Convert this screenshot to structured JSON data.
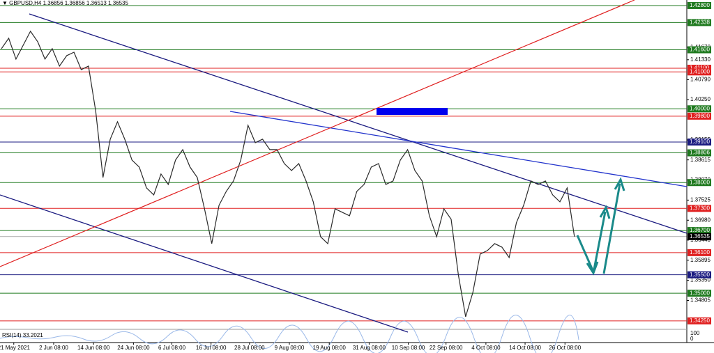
{
  "chart_data": {
    "type": "line",
    "header": "▼ GBPUSD,H4  1.36856 1.36856 1.36513 1.36535",
    "rsi_label": "RSI(14) 33.2021",
    "rsi_yticks": [
      100,
      0
    ],
    "series": [
      {
        "color": "#2a2a2a",
        "values": [
          1.4163,
          1.41913,
          1.41347,
          1.41724,
          1.42102,
          1.41818,
          1.41347,
          1.4163,
          1.41158,
          1.41441,
          1.41535,
          1.41063,
          1.41158,
          1.39931,
          1.38138,
          1.39176,
          1.39648,
          1.39176,
          1.3861,
          1.38421,
          1.37855,
          1.37666,
          1.38232,
          1.37949,
          1.3861,
          1.38893,
          1.38421,
          1.38138,
          1.37288,
          1.36345,
          1.37383,
          1.3776,
          1.38043,
          1.3861,
          1.39553,
          1.39082,
          1.39176,
          1.38893,
          1.38893,
          1.38515,
          1.38327,
          1.38515,
          1.38043,
          1.37477,
          1.36533,
          1.36345,
          1.37288,
          1.37194,
          1.371,
          1.3776,
          1.37949,
          1.38421,
          1.38515,
          1.37949,
          1.38043,
          1.3861,
          1.38893,
          1.38327,
          1.38043,
          1.371,
          1.36533,
          1.37288,
          1.37005,
          1.35495,
          1.34363,
          1.35023,
          1.36062,
          1.36156,
          1.36345,
          1.3625,
          1.35967,
          1.36911,
          1.37383,
          1.38043,
          1.37949,
          1.38043,
          1.37666,
          1.37477,
          1.37855,
          1.36535
        ]
      }
    ],
    "xlim": [
      -0.2,
      94.5
    ],
    "xticks": [
      {
        "value": 1.7,
        "label": "21 May 2021"
      },
      {
        "value": 7.2,
        "label": "2 Jun 08:00"
      },
      {
        "value": 12.7,
        "label": "14 Jun 08:00"
      },
      {
        "value": 18.2,
        "label": "24 Jun 08:00"
      },
      {
        "value": 23.5,
        "label": "6 Jul 08:00"
      },
      {
        "value": 28.9,
        "label": "16 Jul 08:00"
      },
      {
        "value": 34.2,
        "label": "28 Jul 08:00"
      },
      {
        "value": 39.7,
        "label": "9 Aug 08:00"
      },
      {
        "value": 45.2,
        "label": "19 Aug 08:00"
      },
      {
        "value": 50.7,
        "label": "31 Aug 08:00"
      },
      {
        "value": 56.1,
        "label": "10 Sep 08:00"
      },
      {
        "value": 61.3,
        "label": "22 Sep 08:00"
      },
      {
        "value": 66.8,
        "label": "4 Oct 08:00"
      },
      {
        "value": 72.2,
        "label": "14 Oct 08:00"
      },
      {
        "value": 77.7,
        "label": "26 Oct 08:00"
      }
    ],
    "ylim": [
      1.3404,
      1.4295
    ],
    "yticks": [
      {
        "value": 1.4167,
        "label": "1.41670"
      },
      {
        "value": 1.4133,
        "label": "1.41330"
      },
      {
        "value": 1.4079,
        "label": "1.40790"
      },
      {
        "value": 1.4025,
        "label": "1.40250"
      },
      {
        "value": 1.39155,
        "label": "1.39155"
      },
      {
        "value": 1.38615,
        "label": "1.38615"
      },
      {
        "value": 1.3807,
        "label": "1.38070"
      },
      {
        "value": 1.37525,
        "label": "1.37525"
      },
      {
        "value": 1.3698,
        "label": "1.36980"
      },
      {
        "value": 1.3644,
        "label": "1.36440"
      },
      {
        "value": 1.35895,
        "label": "1.35895"
      },
      {
        "value": 1.3535,
        "label": "1.35350"
      },
      {
        "value": 1.34805,
        "label": "1.34805"
      }
    ],
    "levels": [
      {
        "value": 1.428,
        "label": "1.42800",
        "color": "#1f7a1f"
      },
      {
        "value": 1.42338,
        "label": "1.42338",
        "color": "#1f7a1f"
      },
      {
        "value": 1.416,
        "label": "1.41600",
        "color": "#1f7a1f"
      },
      {
        "value": 1.411,
        "label": "1.41100",
        "color": "#e02020"
      },
      {
        "value": 1.41,
        "label": "1.41000",
        "color": "#e02020"
      },
      {
        "value": 1.4,
        "label": "1.40000",
        "color": "#1f7a1f"
      },
      {
        "value": 1.398,
        "label": "1.39800",
        "color": "#e02020"
      },
      {
        "value": 1.391,
        "label": "1.39100",
        "color": "#1a1a80"
      },
      {
        "value": 1.38806,
        "label": "1.38806",
        "color": "#1f7a1f"
      },
      {
        "value": 1.38,
        "label": "1.38000",
        "color": "#1f7a1f"
      },
      {
        "value": 1.373,
        "label": "1.37300",
        "color": "#e02020"
      },
      {
        "value": 1.367,
        "label": "1.36700",
        "color": "#1f7a1f"
      },
      {
        "value": 1.36535,
        "label": "1.36535",
        "color": "#000000"
      },
      {
        "value": 1.361,
        "label": "1.36100",
        "color": "#e02020"
      },
      {
        "value": 1.355,
        "label": "1.35500",
        "color": "#1a1a80"
      },
      {
        "value": 1.35,
        "label": "1.35000",
        "color": "#1f7a1f"
      },
      {
        "value": 1.3425,
        "label": "1.34250",
        "color": "#e02020"
      }
    ]
  }
}
